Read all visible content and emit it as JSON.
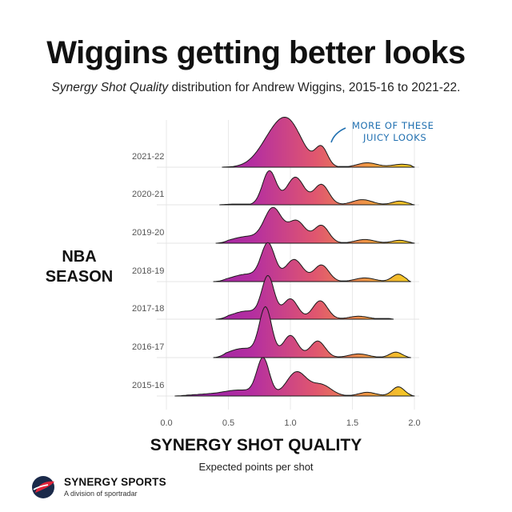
{
  "title": "Wiggins getting better looks",
  "subtitle": {
    "italic": "Synergy Shot Quality",
    "rest": " distribution for Andrew Wiggins, 2015-16 to 2021-22."
  },
  "colors": {
    "low": "#8a1aa8",
    "mid": "#d9457a",
    "high": "#f5d21f",
    "annotation": "#1f6fb0"
  },
  "icons": {
    "logo": "synergy-sports-logo"
  },
  "logo": {
    "name": "SYNERGY SPORTS",
    "tagline": "A division of sportradar"
  },
  "chart_data": {
    "type": "ridgeline",
    "title": "Wiggins getting better looks",
    "xlabel": "SYNERGY SHOT QUALITY",
    "xsublabel": "Expected points per shot",
    "ylabel": "NBA SEASON",
    "xlim": [
      0.0,
      2.1
    ],
    "xticks": [
      "0.0",
      "0.5",
      "1.0",
      "1.5",
      "2.0"
    ],
    "xtick_values": [
      0.0,
      0.5,
      1.0,
      1.5,
      2.0
    ],
    "grid": true,
    "annotation": {
      "lines": [
        "MORE OF THESE",
        "JUICY LOOKS"
      ],
      "series": "2021-22",
      "target_x": 1.27
    },
    "series": [
      {
        "name": "2021-22",
        "range": [
          0.45,
          2.0
        ],
        "peaks": [
          [
            0.9,
            1.0,
            0.13
          ],
          [
            1.02,
            0.55,
            0.1
          ],
          [
            1.25,
            0.52,
            0.05
          ],
          [
            1.62,
            0.12,
            0.08
          ],
          [
            1.9,
            0.08,
            0.08
          ]
        ]
      },
      {
        "name": "2020-21",
        "range": [
          0.43,
          2.0
        ],
        "peaks": [
          [
            0.83,
            0.92,
            0.055
          ],
          [
            1.04,
            0.75,
            0.07
          ],
          [
            1.25,
            0.55,
            0.06
          ],
          [
            1.58,
            0.14,
            0.08
          ],
          [
            1.88,
            0.1,
            0.06
          ]
        ]
      },
      {
        "name": "2019-20",
        "range": [
          0.4,
          2.0
        ],
        "peaks": [
          [
            0.65,
            0.18,
            0.12
          ],
          [
            0.86,
            0.92,
            0.07
          ],
          [
            1.05,
            0.6,
            0.07
          ],
          [
            1.25,
            0.48,
            0.06
          ],
          [
            1.6,
            0.1,
            0.08
          ],
          [
            1.88,
            0.08,
            0.06
          ]
        ]
      },
      {
        "name": "2018-19",
        "range": [
          0.38,
          1.97
        ],
        "peaks": [
          [
            0.65,
            0.2,
            0.12
          ],
          [
            0.82,
            0.98,
            0.055
          ],
          [
            1.03,
            0.6,
            0.07
          ],
          [
            1.25,
            0.45,
            0.06
          ],
          [
            1.6,
            0.1,
            0.08
          ],
          [
            1.87,
            0.2,
            0.05
          ]
        ]
      },
      {
        "name": "2017-18",
        "range": [
          0.4,
          1.83
        ],
        "peaks": [
          [
            0.65,
            0.22,
            0.12
          ],
          [
            0.82,
            1.1,
            0.05
          ],
          [
            1.0,
            0.55,
            0.06
          ],
          [
            1.24,
            0.5,
            0.06
          ],
          [
            1.55,
            0.08,
            0.08
          ]
        ]
      },
      {
        "name": "2016-17",
        "range": [
          0.38,
          1.97
        ],
        "peaks": [
          [
            0.62,
            0.25,
            0.12
          ],
          [
            0.8,
            1.3,
            0.05
          ],
          [
            1.0,
            0.6,
            0.06
          ],
          [
            1.22,
            0.45,
            0.06
          ],
          [
            1.55,
            0.1,
            0.08
          ],
          [
            1.85,
            0.15,
            0.05
          ]
        ]
      },
      {
        "name": "2015-16",
        "range": [
          0.07,
          2.0
        ],
        "peaks": [
          [
            0.35,
            0.05,
            0.15
          ],
          [
            0.6,
            0.15,
            0.12
          ],
          [
            0.78,
            1.0,
            0.05
          ],
          [
            1.05,
            0.65,
            0.08
          ],
          [
            1.25,
            0.3,
            0.08
          ],
          [
            1.62,
            0.1,
            0.07
          ],
          [
            1.87,
            0.25,
            0.05
          ]
        ]
      }
    ]
  }
}
